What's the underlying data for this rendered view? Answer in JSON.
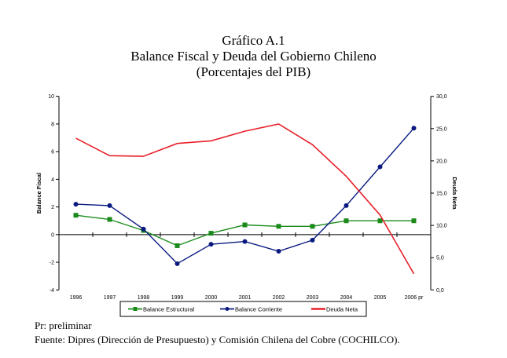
{
  "header": {
    "title": "Gráfico A.1",
    "subtitle": "Balance Fiscal y Deuda del Gobierno Chileno",
    "units": "(Porcentajes del PIB)"
  },
  "footnotes": {
    "note": "Pr: preliminar",
    "source": "Fuente: Dipres (Dirección de Presupuesto) y Comisión Chilena del Cobre (COCHILCO)."
  },
  "chart_data": {
    "type": "line",
    "title": "Balance Fiscal y Deuda del Gobierno Chileno",
    "subtitle": "(Porcentajes del PIB)",
    "categories": [
      "1996",
      "1997",
      "1998",
      "1999",
      "2000",
      "2001",
      "2002",
      "2003",
      "2004",
      "2005",
      "2006 pr"
    ],
    "ylabel": "Balance Fiscal",
    "ylabel_right": "Deuda Neta",
    "ylim": [
      -4,
      10
    ],
    "yticks": [
      "10",
      "8",
      "6",
      "4",
      "2",
      "0",
      "-2",
      "-4"
    ],
    "ytick_values": [
      10,
      8,
      6,
      4,
      2,
      0,
      -2,
      -4
    ],
    "ylim_right": [
      0,
      30
    ],
    "yticks_right": [
      "30,0",
      "25,0",
      "20,0",
      "15,0",
      "10,0",
      "5,0",
      "0,0"
    ],
    "ytick_values_right": [
      30,
      25,
      20,
      15,
      10,
      5,
      0
    ],
    "grid": false,
    "legend_position": "bottom",
    "series": [
      {
        "name": "Balance Estructural",
        "axis": "left",
        "color": "#1a8a1a",
        "marker": "square",
        "values": [
          1.4,
          1.1,
          0.3,
          -0.8,
          0.1,
          0.7,
          0.6,
          0.6,
          1.0,
          1.0,
          1.0
        ]
      },
      {
        "name": "Balance Corriente",
        "axis": "left",
        "color": "#0a1a80",
        "marker": "circle",
        "values": [
          2.2,
          2.1,
          0.4,
          -2.1,
          -0.7,
          -0.5,
          -1.2,
          -0.4,
          2.1,
          4.9,
          7.7
        ]
      },
      {
        "name": "Deuda Neta",
        "axis": "right",
        "color": "#e8202a",
        "marker": "none",
        "values": [
          23.5,
          20.8,
          20.7,
          22.7,
          23.1,
          24.6,
          25.7,
          22.5,
          17.6,
          11.6,
          2.5
        ]
      }
    ]
  }
}
